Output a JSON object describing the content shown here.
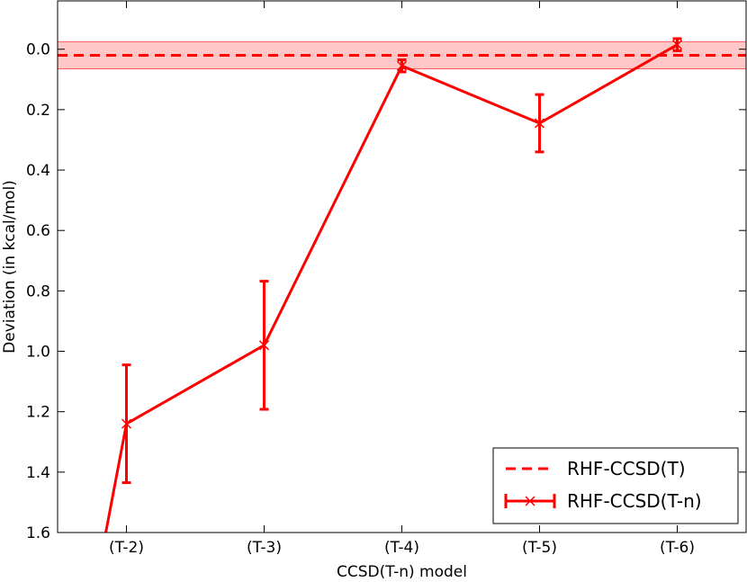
{
  "chart_data": {
    "type": "line",
    "title": "",
    "xlabel": "CCSD(T-n) model",
    "ylabel": "Deviation (in kcal/mol)",
    "categories": [
      "(T-2)",
      "(T-3)",
      "(T-4)",
      "(T-5)",
      "(T-6)"
    ],
    "ylim": [
      -0.16,
      1.6
    ],
    "y_inverted": true,
    "yticks": [
      0.0,
      0.2,
      0.4,
      0.6,
      0.8,
      1.0,
      1.2,
      1.4,
      1.6
    ],
    "ytick_labels": [
      "0.0",
      "0.2",
      "0.4",
      "0.6",
      "0.8",
      "1.0",
      "1.2",
      "1.4",
      "1.6"
    ],
    "grid": false,
    "legend_position": "bottom-right",
    "reference": {
      "name": "RHF-CCSD(T)",
      "value": 0.02,
      "band": [
        -0.025,
        0.065
      ],
      "style": "dashed",
      "color": "#ff0000",
      "band_color": "#ff9999"
    },
    "series": [
      {
        "name": "RHF-CCSD(T-n)",
        "color": "#ff0000",
        "marker": "x",
        "x": [
          -0.15,
          0,
          1,
          2,
          3,
          4
        ],
        "values": [
          1.6,
          1.24,
          0.98,
          0.055,
          0.245,
          -0.015
        ],
        "errors": [
          null,
          0.195,
          0.212,
          0.02,
          0.095,
          0.02
        ]
      }
    ]
  }
}
